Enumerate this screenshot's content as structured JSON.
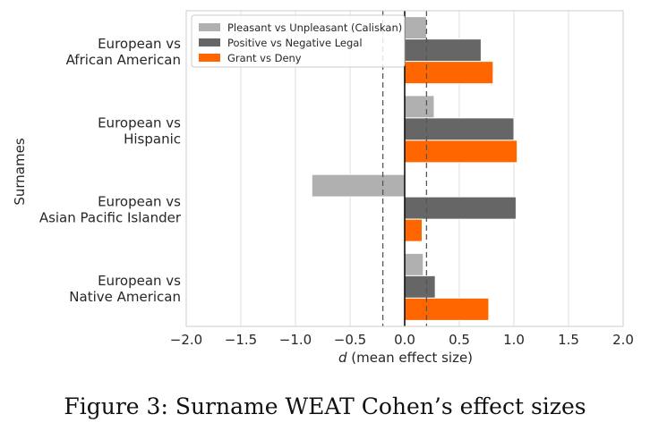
{
  "caption": "Figure 3: Surname WEAT Cohen’s effect sizes",
  "chart_data": {
    "type": "bar",
    "orientation": "horizontal",
    "title": "",
    "xlabel_italic": "d",
    "xlabel_rest": " (mean effect size)",
    "ylabel": "Surnames",
    "xlim": [
      -2.0,
      2.0
    ],
    "xticks": [
      -2.0,
      -1.5,
      -1.0,
      -0.5,
      0.0,
      0.5,
      1.0,
      1.5,
      2.0
    ],
    "xtick_labels": [
      "−2.0",
      "−1.5",
      "−1.0",
      "−0.5",
      "0.0",
      "0.5",
      "1.0",
      "1.5",
      "2.0"
    ],
    "grid": "vertical",
    "legend_position": "top-left",
    "categories": [
      [
        "European vs",
        "African American"
      ],
      [
        "European vs",
        "Hispanic"
      ],
      [
        "European vs",
        "Asian Pacific Islander"
      ],
      [
        "European vs",
        "Native American"
      ]
    ],
    "series": [
      {
        "name": "Pleasant vs Unpleasant (Caliskan)",
        "color": "#b0b0b0",
        "values": [
          0.2,
          0.27,
          -0.85,
          0.17
        ]
      },
      {
        "name": "Positive vs Negative Legal",
        "color": "#666666",
        "values": [
          0.7,
          1.0,
          1.02,
          0.28
        ]
      },
      {
        "name": "Grant vs Deny",
        "color": "#ff6600",
        "values": [
          0.81,
          1.03,
          0.16,
          0.77
        ]
      }
    ],
    "reference_lines": [
      -0.2,
      0.2
    ]
  }
}
